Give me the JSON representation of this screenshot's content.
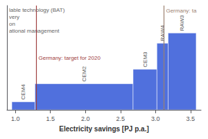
{
  "chart_data": {
    "type": "bar",
    "labels": [
      "CEM4",
      "CEM2",
      "CEM3",
      "RAW4",
      "RAW3"
    ],
    "bins": [
      0.95,
      1.28,
      2.68,
      3.02,
      3.18,
      3.58
    ],
    "values": [
      0.055,
      0.18,
      0.28,
      0.46,
      0.53
    ],
    "xlabel": "Electricity savings [PJ p.a.]",
    "xlim": [
      0.88,
      3.65
    ],
    "xticks": [
      {
        "value": 1.0,
        "label": "1.0"
      },
      1.5,
      {
        "value": 2.0,
        "label": "2.0"
      },
      2.5,
      {
        "value": 3.0,
        "label": "3.0"
      },
      3.5
    ],
    "ylim": [
      0,
      0.72
    ],
    "yticks": [],
    "tick_labels": "x",
    "grid": false,
    "annotations": [
      {
        "type": "vline",
        "x": 1.3,
        "label": "Germany: target for 2020",
        "color": "#A04040"
      },
      {
        "type": "vline",
        "x": 3.12,
        "label": "Germany: ta",
        "color": "#9B8070"
      },
      {
        "type": "text",
        "label": "lable technology (BAT)"
      },
      {
        "type": "text",
        "label": "very"
      },
      {
        "type": "text",
        "label": "on"
      },
      {
        "type": "text",
        "label": "ational management"
      }
    ]
  }
}
